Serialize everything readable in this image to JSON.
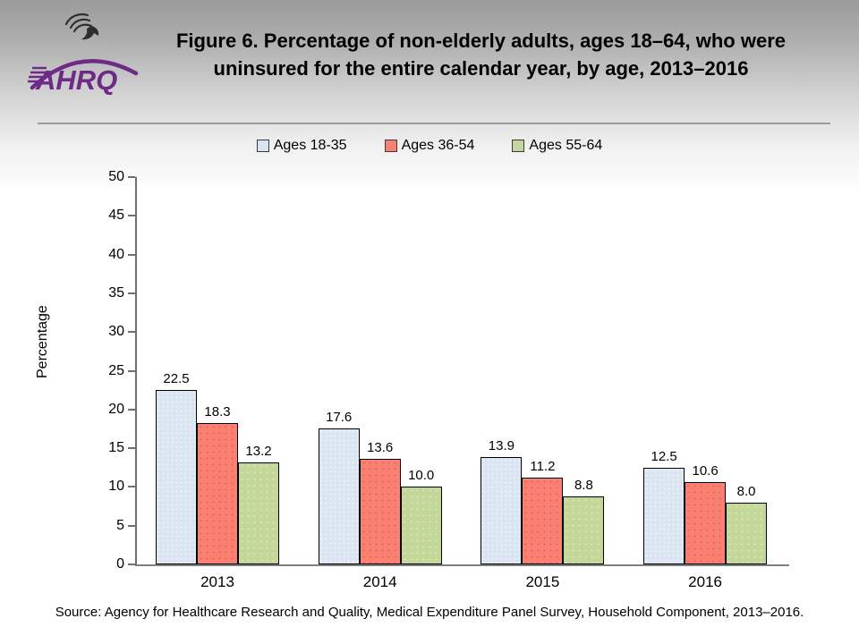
{
  "header": {
    "title_lines": [
      "Figure 6. Percentage of non-elderly adults, ages 18–64, who were",
      "uninsured for the entire calendar year, by age, 2013–2016"
    ],
    "logo_text": "AHRQ",
    "logo_color": "#6d2a87",
    "eagle_icon": "hhs-eagle-icon"
  },
  "chart_data": {
    "type": "bar",
    "categories": [
      "2013",
      "2014",
      "2015",
      "2016"
    ],
    "series": [
      {
        "name": "Ages 18-35",
        "color": "#DBE5F1",
        "values": [
          22.5,
          17.6,
          13.9,
          12.5
        ]
      },
      {
        "name": "Ages 36-54",
        "color": "#FA8072",
        "values": [
          18.3,
          13.6,
          11.2,
          10.6
        ]
      },
      {
        "name": "Ages 55-64",
        "color": "#C3D69B",
        "values": [
          13.2,
          10.0,
          8.8,
          8.0
        ]
      }
    ],
    "title": "",
    "xlabel": "",
    "ylabel": "Percentage",
    "ylim": [
      0,
      50
    ],
    "ytick_step": 5,
    "grid": false,
    "legend_position": "top",
    "bar_labels": true
  },
  "source": "Source: Agency for Healthcare Research and Quality, Medical Expenditure Panel Survey, Household Component, 2013–2016."
}
